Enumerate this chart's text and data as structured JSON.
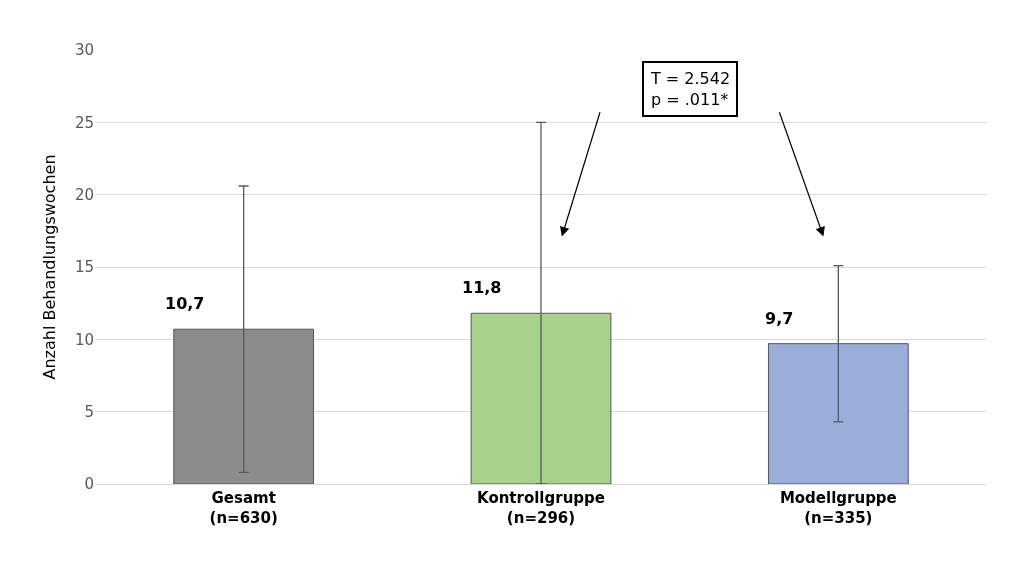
{
  "chart_data": {
    "type": "bar",
    "ylabel": "Anzahl Behandlungswochen",
    "categories": [
      "Gesamt\n(n=630)",
      "Kontrollgruppe\n(n=296)",
      "Modellgruppe\n(n=335)"
    ],
    "values": [
      10.7,
      11.8,
      9.7
    ],
    "value_labels": [
      "10,7",
      "11,8",
      "9,7"
    ],
    "colors": [
      "#8c8c8c",
      "#a9d18e",
      "#9aaedc"
    ],
    "errors": [
      [
        0.8,
        20.6
      ],
      [
        0,
        25.0
      ],
      [
        4.3,
        15.1
      ]
    ],
    "ylim": [
      0,
      30
    ],
    "yticks": [
      0,
      5,
      10,
      15,
      20,
      25,
      30
    ],
    "grid": "y",
    "legend": false,
    "annotations": [
      "T = 2.542\np = .011*"
    ]
  }
}
